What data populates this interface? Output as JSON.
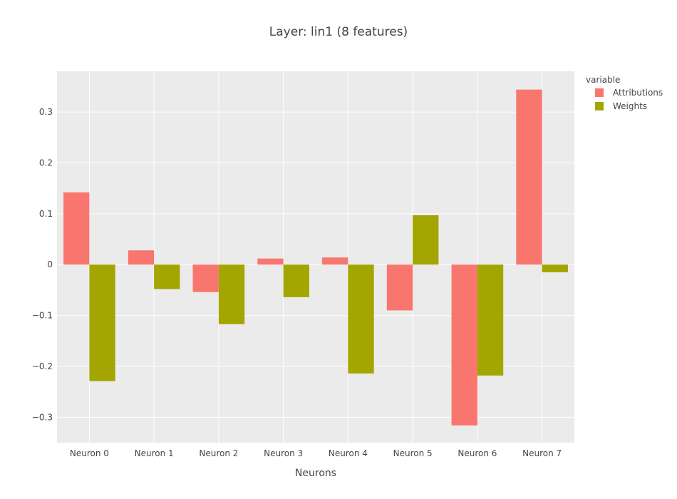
{
  "chart_data": {
    "type": "bar",
    "title": "Layer: lin1 (8 features)",
    "xlabel": "Neurons",
    "ylabel": "",
    "categories": [
      "Neuron 0",
      "Neuron 1",
      "Neuron 2",
      "Neuron 3",
      "Neuron 4",
      "Neuron 5",
      "Neuron 6",
      "Neuron 7"
    ],
    "series": [
      {
        "name": "Attributions",
        "color": "#F8766D",
        "values": [
          0.142,
          0.028,
          -0.054,
          0.012,
          0.014,
          -0.09,
          -0.316,
          0.344
        ]
      },
      {
        "name": "Weights",
        "color": "#A3A500",
        "values": [
          -0.229,
          -0.048,
          -0.117,
          -0.064,
          -0.214,
          0.097,
          -0.218,
          -0.015
        ]
      }
    ],
    "ylim": [
      -0.35,
      0.38
    ],
    "yticks": [
      -0.3,
      -0.2,
      -0.1,
      0,
      0.1,
      0.2,
      0.3
    ],
    "ytick_labels": [
      "−0.3",
      "−0.2",
      "−0.1",
      "0",
      "0.1",
      "0.2",
      "0.3"
    ],
    "grid": true,
    "plot_background": "#EBEBEB",
    "legend": {
      "title": "variable",
      "placement": "right"
    }
  }
}
